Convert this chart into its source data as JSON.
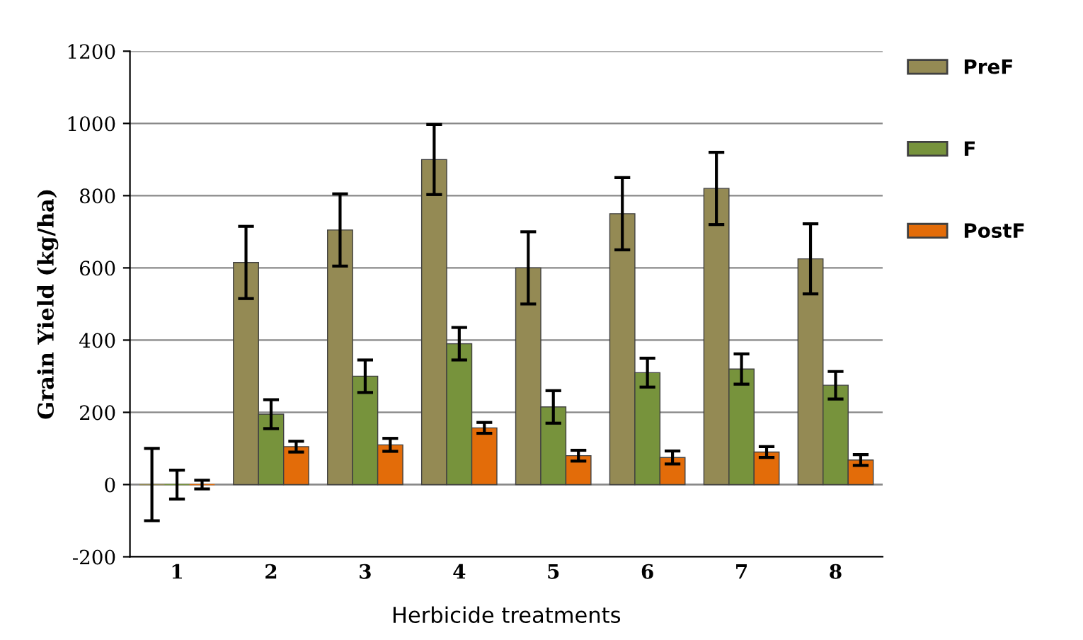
{
  "chart_data": {
    "type": "bar",
    "xlabel": "Herbicide treatments",
    "ylabel": "Grain Yield (kg/ha)",
    "categories": [
      "1",
      "2",
      "3",
      "4",
      "5",
      "6",
      "7",
      "8"
    ],
    "series": [
      {
        "name": "PreF",
        "color": "#948a54",
        "values": [
          0,
          615,
          705,
          900,
          600,
          750,
          820,
          625
        ],
        "errors": [
          100,
          100,
          100,
          97,
          100,
          100,
          100,
          97
        ]
      },
      {
        "name": "F",
        "color": "#77933c",
        "values": [
          0,
          195,
          300,
          390,
          215,
          310,
          320,
          275
        ],
        "errors": [
          40,
          40,
          45,
          45,
          45,
          40,
          42,
          38
        ]
      },
      {
        "name": "PostF",
        "color": "#e36c09",
        "values": [
          0,
          105,
          110,
          157,
          80,
          75,
          90,
          68
        ],
        "errors": [
          12,
          15,
          18,
          15,
          15,
          18,
          15,
          15
        ]
      }
    ],
    "ylim": [
      -200,
      1200
    ],
    "yticks": [
      -200,
      0,
      200,
      400,
      600,
      800,
      1000,
      1200
    ],
    "grid": "y",
    "legend": "right"
  }
}
